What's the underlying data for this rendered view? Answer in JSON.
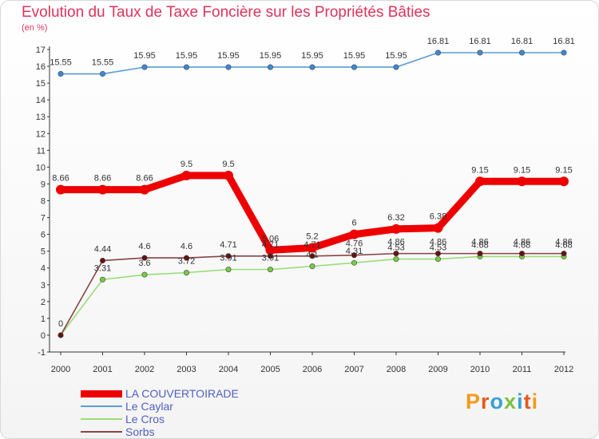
{
  "colors": {
    "title": "#e0325a",
    "legend_text": "#5060c0",
    "axis": "#333333",
    "grid": "#dddddd",
    "brand_letters": [
      "#f29a1e",
      "#e55a1c",
      "#3aa0d8",
      "#7dc242",
      "#3aa0d8",
      "#e55a1c"
    ]
  },
  "brand": {
    "text": "Proxiti"
  },
  "chart_data": {
    "type": "line",
    "title": "Evolution du Taux de Taxe Foncière sur les Propriétés Bâties",
    "unit_label": "(en %)",
    "x": [
      "2000",
      "2001",
      "2002",
      "2003",
      "2004",
      "2005",
      "2006",
      "2007",
      "2008",
      "2009",
      "2010",
      "2011",
      "2012"
    ],
    "ylim": [
      -1,
      17
    ],
    "yticks": [
      -1,
      0,
      1,
      2,
      3,
      4,
      5,
      6,
      7,
      8,
      9,
      10,
      11,
      12,
      13,
      14,
      15,
      16,
      17
    ],
    "grid": false,
    "legend_position": "bottom-left",
    "series": [
      {
        "name": "LA COUVERTOIRADE",
        "color": "#ee0000",
        "line_weight": "thick",
        "values": [
          8.66,
          8.66,
          8.66,
          9.5,
          9.5,
          5.06,
          5.2,
          6,
          6.32,
          6.38,
          9.15,
          9.15,
          9.15
        ],
        "labels": [
          "8.66",
          "8.66",
          "8.66",
          "9.5",
          "9.5",
          "5.06",
          "5.2",
          "6",
          "6.32",
          "6.38",
          "9.15",
          "9.15",
          "9.15"
        ]
      },
      {
        "name": "Le Caylar",
        "color": "#5b9bd5",
        "marker_color": "#3a8ad8",
        "line_weight": "thin",
        "values": [
          15.55,
          15.55,
          15.95,
          15.95,
          15.95,
          15.95,
          15.95,
          15.95,
          15.95,
          16.81,
          16.81,
          16.81,
          16.81
        ],
        "labels": [
          "15.55",
          "15.55",
          "15.95",
          "15.95",
          "15.95",
          "15.95",
          "15.95",
          "15.95",
          "15.95",
          "16.81",
          "16.81",
          "16.81",
          "16.81"
        ]
      },
      {
        "name": "Le Cros",
        "color": "#99dd77",
        "marker_color": "#77cc44",
        "line_weight": "thin",
        "values": [
          0,
          3.31,
          3.6,
          3.72,
          3.91,
          3.91,
          4.1,
          4.31,
          4.53,
          4.53,
          4.68,
          4.68,
          4.68
        ],
        "labels": [
          "",
          "3.31",
          "3.6",
          "3.72",
          "3.91",
          "3.91",
          "4.1",
          "4.31",
          "4.53",
          "4.53",
          "4.68",
          "4.68",
          "4.68"
        ]
      },
      {
        "name": "Sorbs",
        "color": "#884444",
        "marker_color": "#661111",
        "line_weight": "thin",
        "values": [
          0,
          4.44,
          4.6,
          4.6,
          4.71,
          4.71,
          4.71,
          4.76,
          4.86,
          4.86,
          4.86,
          4.86,
          4.86
        ],
        "labels": [
          "0",
          "4.44",
          "4.6",
          "4.6",
          "4.71",
          "4.71",
          "4.71",
          "4.76",
          "4.86",
          "4.86",
          "4.86",
          "4.86",
          "4.86"
        ]
      }
    ]
  }
}
